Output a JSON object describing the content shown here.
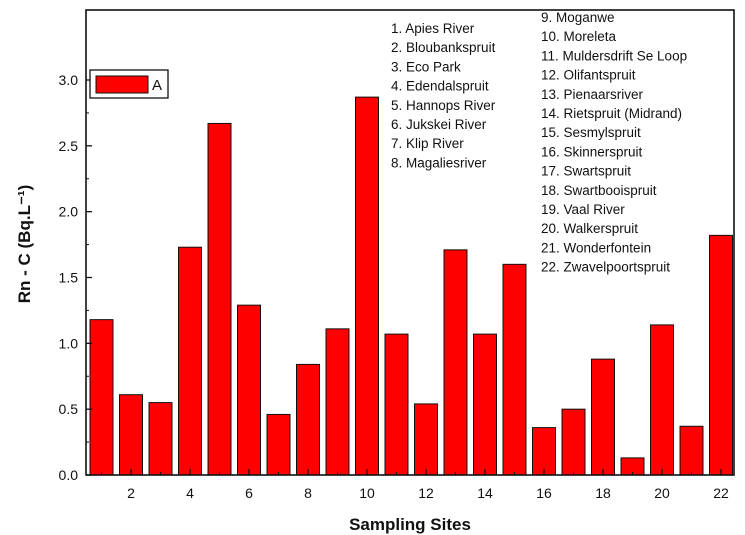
{
  "chart_data": {
    "type": "bar",
    "categories": [
      "1",
      "2",
      "3",
      "4",
      "5",
      "6",
      "7",
      "8",
      "9",
      "10",
      "11",
      "12",
      "13",
      "14",
      "15",
      "16",
      "17",
      "18",
      "19",
      "20",
      "21",
      "22"
    ],
    "series": [
      {
        "name": "A",
        "values": [
          1.18,
          0.61,
          0.55,
          1.73,
          2.67,
          1.29,
          0.46,
          0.84,
          1.11,
          2.87,
          1.07,
          0.54,
          1.71,
          1.07,
          1.6,
          0.36,
          0.5,
          0.88,
          0.13,
          1.14,
          0.37,
          1.82
        ]
      }
    ],
    "x_tick_labels": [
      "2",
      "4",
      "6",
      "8",
      "10",
      "12",
      "14",
      "16",
      "18",
      "20",
      "22"
    ],
    "y_tick_labels": [
      "0.0",
      "0.5",
      "1.0",
      "1.5",
      "2.0",
      "2.5",
      "3.0"
    ],
    "xlabel": "Sampling Sites",
    "ylabel": "Rn - C (Bq.L⁻¹)",
    "ylim": [
      0,
      3.0
    ],
    "grid": false,
    "legend_placement": "top-left",
    "bar_color": "#ff0000",
    "site_list_left": [
      "1. Apies River",
      "2. Bloubankspruit",
      "3. Eco Park",
      "4. Edendalspruit",
      "5. Hannops River",
      "6. Jukskei River",
      "7. Klip River",
      "8. Magaliesriver"
    ],
    "site_list_right": [
      "9. Moganwe",
      "10. Moreleta",
      "11. Muldersdrift Se Loop",
      "12. Olifantspruit",
      "13. Pienaarsriver",
      "14. Rietspruit (Midrand)",
      "15. Sesmylspruit",
      "16. Skinnerspruit",
      "17. Swartspruit",
      "18. Swartbooispruit",
      "19. Vaal River",
      "20. Walkerspruit",
      "21. Wonderfontein",
      "22. Zwavelpoortspruit"
    ]
  }
}
